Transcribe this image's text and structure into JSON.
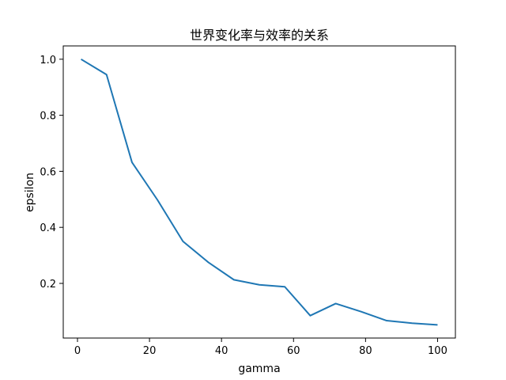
{
  "chart_data": {
    "type": "line",
    "title": "世界变化率与效率的关系",
    "xlabel": "gamma",
    "ylabel": "epsilon",
    "xlim": [
      -3.95,
      104.95
    ],
    "ylim": [
      0.005,
      1.0475
    ],
    "xticks": [
      0,
      20,
      40,
      60,
      80,
      100
    ],
    "yticks": [
      0.2,
      0.4,
      0.6,
      0.8,
      1.0
    ],
    "xtick_labels": [
      "0",
      "20",
      "40",
      "60",
      "80",
      "100"
    ],
    "ytick_labels": [
      "0.2",
      "0.4",
      "0.6",
      "0.8",
      "1.0"
    ],
    "grid": false,
    "series": [
      {
        "color": "#1f77b4",
        "x": [
          1,
          8.07,
          15.14,
          22.21,
          29.29,
          36.36,
          43.43,
          50.5,
          57.57,
          64.64,
          71.71,
          78.79,
          85.86,
          92.93,
          100
        ],
        "y": [
          1.0,
          0.945,
          0.632,
          0.498,
          0.35,
          0.275,
          0.213,
          0.195,
          0.188,
          0.085,
          0.128,
          0.099,
          0.067,
          0.058,
          0.052
        ]
      }
    ]
  }
}
